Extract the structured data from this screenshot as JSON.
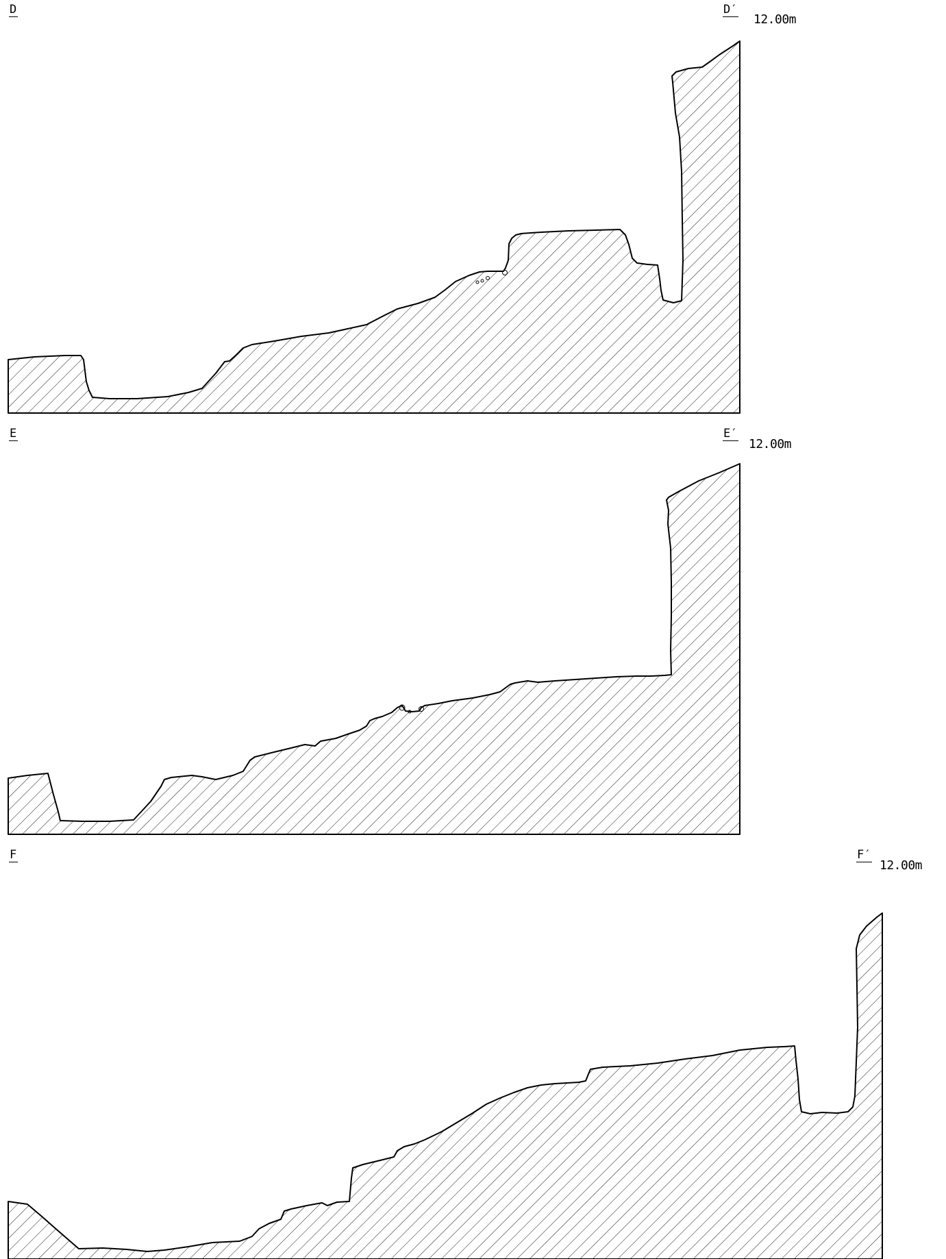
{
  "sections": [
    {
      "id": "D",
      "left_label": "D",
      "right_label": "D′",
      "elevation": "12.00m"
    },
    {
      "id": "E",
      "left_label": "E",
      "right_label": "E′",
      "elevation": "12.00m"
    },
    {
      "id": "F",
      "left_label": "F",
      "right_label": "F′",
      "elevation": "12.00m"
    }
  ],
  "style": {
    "line_color": "#000000",
    "hatch_color": "#000000",
    "background": "#ffffff"
  }
}
